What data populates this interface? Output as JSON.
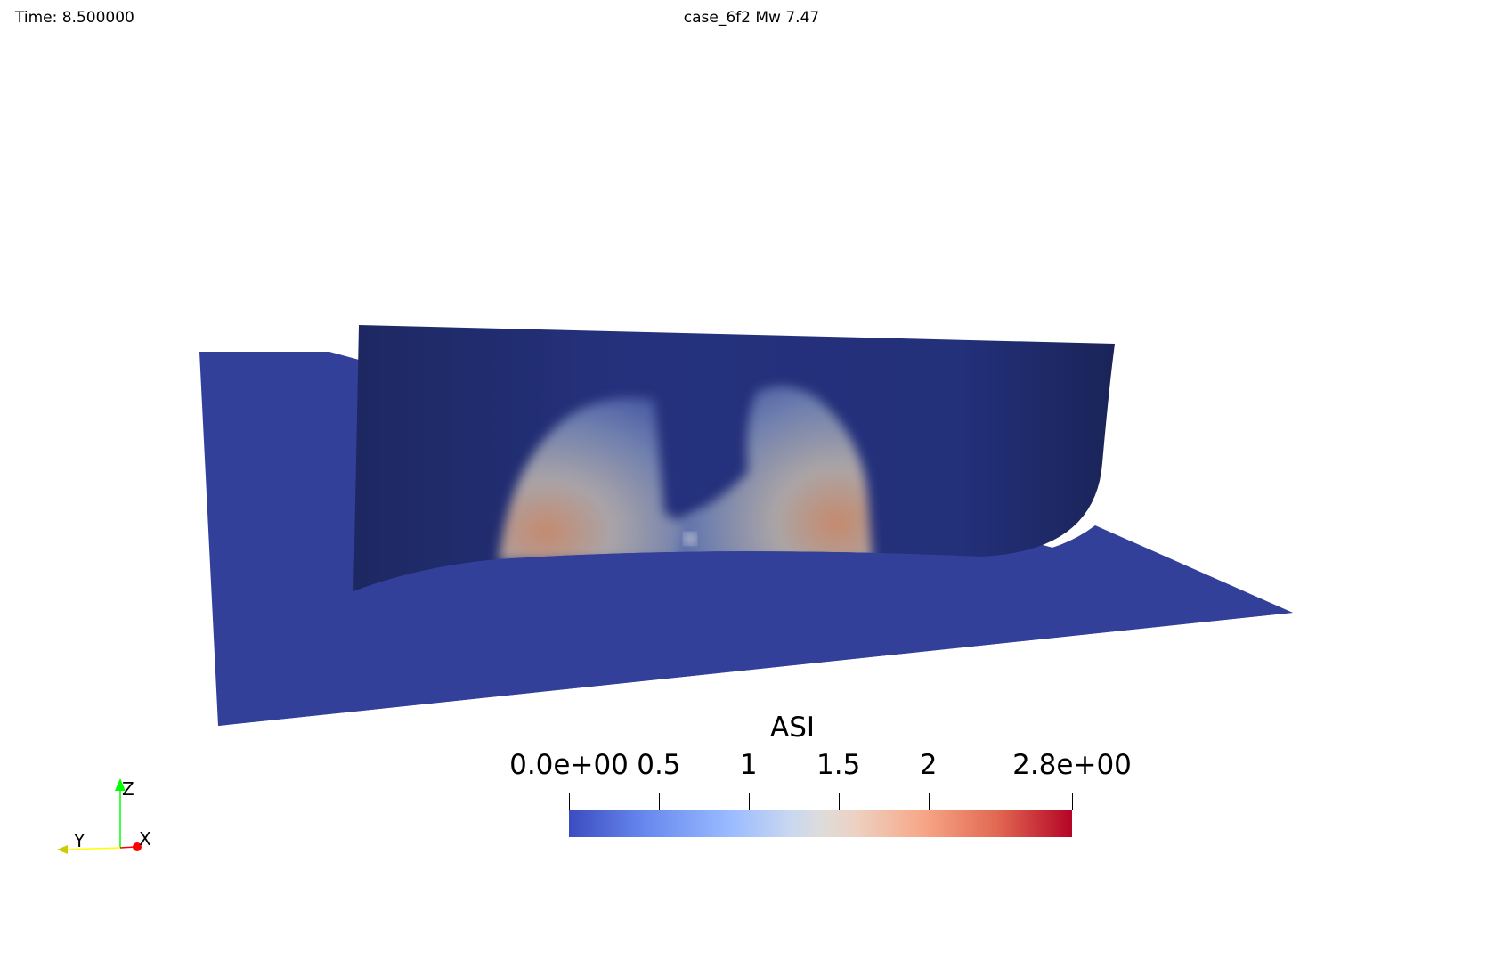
{
  "header": {
    "time_label": "Time: 8.500000",
    "case_title": "case_6f2 Mw 7.47"
  },
  "colors": {
    "background": "#ffffff",
    "ground_plane": "#33409a",
    "fault_surface_dark": "#1f2a68",
    "fault_surface_mid": "#24307a",
    "colormap_low": "#3b4cc0",
    "colormap_mid": "#dddcdc",
    "colormap_high": "#b40426"
  },
  "colorbar": {
    "title": "ASI",
    "colormap": "cool-to-warm",
    "range": [
      0.0,
      2.8
    ],
    "ticks": [
      {
        "value": 0.0,
        "label": "0.0e+00"
      },
      {
        "value": 0.5,
        "label": "0.5"
      },
      {
        "value": 1.0,
        "label": "1"
      },
      {
        "value": 1.5,
        "label": "1.5"
      },
      {
        "value": 2.0,
        "label": "2"
      },
      {
        "value": 2.8,
        "label": "2.8e+00"
      }
    ]
  },
  "axes": {
    "x": {
      "label": "X",
      "color": "#ff0000"
    },
    "y": {
      "label": "Y",
      "color": "#ffff00"
    },
    "z": {
      "label": "Z",
      "color": "#00ff00"
    }
  }
}
